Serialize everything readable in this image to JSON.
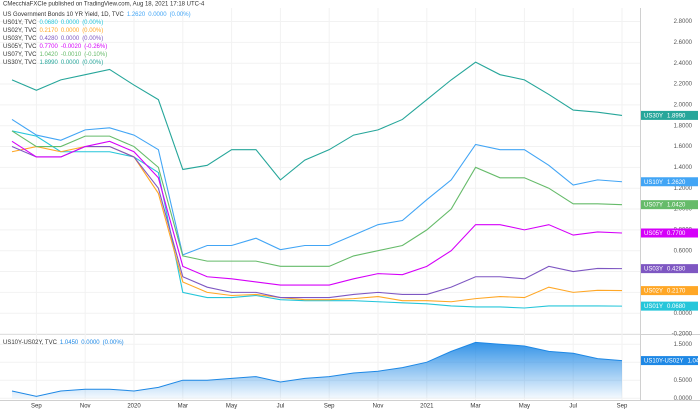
{
  "header": "CMecchiaFXCIe published on TradingView.com, Aug 18, 2021 17:18 UTC-4",
  "chart_data": [
    {
      "type": "line",
      "title": "US Government Bonds 10 YR Yield, 1D, TVC",
      "categories": [
        null,
        "Sep",
        null,
        "Nov",
        null,
        "2020",
        null,
        "Mar",
        null,
        "May",
        null,
        "Jul",
        null,
        "Sep",
        null,
        "Nov",
        null,
        "2021",
        null,
        "Mar",
        null,
        "May",
        null,
        "Jul",
        null,
        "Sep"
      ],
      "ylim": [
        -0.19,
        2.93
      ],
      "yticks": [
        {
          "value": -0.2,
          "label": "-0.2000"
        },
        {
          "value": 0,
          "label": "0.0000"
        },
        {
          "value": 0.2,
          "label": "0.2000"
        },
        {
          "value": 0.4,
          "label": "0.4000"
        },
        {
          "value": 0.6,
          "label": "0.6000"
        },
        {
          "value": 0.8,
          "label": "0.8000"
        },
        {
          "value": 1.0,
          "label": "1.0000"
        },
        {
          "value": 1.2,
          "label": "1.2000"
        },
        {
          "value": 1.4,
          "label": "1.4000"
        },
        {
          "value": 1.6,
          "label": "1.6000"
        },
        {
          "value": 1.8,
          "label": "1.8000"
        },
        {
          "value": 2.0,
          "label": "2.0000"
        },
        {
          "value": 2.2,
          "label": "2.2000"
        },
        {
          "value": 2.4,
          "label": "2.4000"
        },
        {
          "value": 2.6,
          "label": "2.6000"
        },
        {
          "value": 2.8,
          "label": "2.8000"
        }
      ],
      "series": [
        {
          "name": "US10Y",
          "legend": null,
          "color": "#42a5f5",
          "price": "1.2620",
          "change": "0.0000",
          "change_pct": "(0.00%)",
          "values": [
            1.86,
            1.71,
            1.66,
            1.76,
            1.78,
            1.71,
            1.57,
            0.56,
            0.65,
            0.65,
            0.72,
            0.61,
            0.65,
            0.65,
            0.75,
            0.85,
            0.89,
            1.09,
            1.28,
            1.62,
            1.57,
            1.57,
            1.42,
            1.23,
            1.28,
            1.262
          ]
        },
        {
          "name": "US01Y",
          "legend": "US01Y, TVC",
          "color": "#26c6da",
          "price": "0.0680",
          "change": "0.0000",
          "change_pct": "(0.00%)",
          "values": [
            1.75,
            1.7,
            1.55,
            1.55,
            1.55,
            1.5,
            1.35,
            0.2,
            0.15,
            0.15,
            0.17,
            0.13,
            0.12,
            0.12,
            0.12,
            0.11,
            0.1,
            0.09,
            0.07,
            0.06,
            0.06,
            0.05,
            0.07,
            0.07,
            0.07,
            0.068
          ]
        },
        {
          "name": "US02Y",
          "legend": "US02Y, TVC",
          "color": "#ffa726",
          "price": "0.2170",
          "change": "0.0000",
          "change_pct": "(0.00%)",
          "values": [
            1.55,
            1.6,
            1.55,
            1.6,
            1.6,
            1.5,
            1.15,
            0.3,
            0.2,
            0.17,
            0.18,
            0.15,
            0.13,
            0.13,
            0.14,
            0.16,
            0.12,
            0.12,
            0.11,
            0.14,
            0.16,
            0.15,
            0.25,
            0.2,
            0.22,
            0.217
          ]
        },
        {
          "name": "US03Y",
          "legend": "US03Y, TVC",
          "color": "#7e57c2",
          "price": "0.4280",
          "change": "0.0000",
          "change_pct": "(0.00%)",
          "values": [
            1.6,
            1.5,
            1.5,
            1.6,
            1.6,
            1.5,
            1.2,
            0.35,
            0.25,
            0.2,
            0.2,
            0.15,
            0.15,
            0.15,
            0.18,
            0.2,
            0.18,
            0.18,
            0.25,
            0.35,
            0.35,
            0.33,
            0.45,
            0.4,
            0.43,
            0.428
          ]
        },
        {
          "name": "US05Y",
          "legend": "US05Y, TVC",
          "color": "#d500f9",
          "price": "0.7700",
          "change": "-0.0020",
          "change_pct": "(-0.26%)",
          "values": [
            1.65,
            1.5,
            1.5,
            1.6,
            1.65,
            1.55,
            1.3,
            0.45,
            0.35,
            0.33,
            0.3,
            0.27,
            0.27,
            0.27,
            0.33,
            0.38,
            0.37,
            0.45,
            0.6,
            0.85,
            0.85,
            0.8,
            0.85,
            0.75,
            0.78,
            0.77
          ]
        },
        {
          "name": "US07Y",
          "legend": "US07Y, TVC",
          "color": "#66bb6a",
          "price": "1.0420",
          "change": "-0.0010",
          "change_pct": "(-0.10%)",
          "values": [
            1.75,
            1.6,
            1.6,
            1.7,
            1.7,
            1.6,
            1.4,
            0.55,
            0.5,
            0.5,
            0.5,
            0.45,
            0.45,
            0.45,
            0.55,
            0.6,
            0.65,
            0.8,
            1.0,
            1.4,
            1.3,
            1.3,
            1.2,
            1.05,
            1.05,
            1.042
          ]
        },
        {
          "name": "US30Y",
          "legend": "US30Y, TVC",
          "color": "#26a69a",
          "price": "1.8990",
          "change": "0.0000",
          "change_pct": "(0.00%)",
          "values": [
            2.24,
            2.14,
            2.24,
            2.29,
            2.34,
            2.19,
            2.05,
            1.38,
            1.42,
            1.57,
            1.57,
            1.28,
            1.47,
            1.57,
            1.71,
            1.76,
            1.86,
            2.05,
            2.24,
            2.41,
            2.29,
            2.24,
            2.1,
            1.95,
            1.93,
            1.899
          ]
        }
      ]
    },
    {
      "type": "area",
      "series": [
        {
          "name": "US10Y-US02Y",
          "legend": "US10Y-US02Y, TVC",
          "color": "#1e88e5",
          "price": "1.0450",
          "change": "0.0000",
          "change_pct": "(0.00%)",
          "values": [
            0.2,
            0.05,
            0.2,
            0.25,
            0.25,
            0.2,
            0.3,
            0.5,
            0.5,
            0.55,
            0.6,
            0.45,
            0.55,
            0.6,
            0.7,
            0.75,
            0.85,
            1.0,
            1.3,
            1.55,
            1.5,
            1.45,
            1.3,
            1.25,
            1.1,
            1.045
          ]
        }
      ],
      "ylim": [
        -0.05,
        1.7
      ],
      "yticks": [
        {
          "value": 0,
          "label": "0.0000"
        },
        {
          "value": 0.5,
          "label": "0.5000"
        },
        {
          "value": 1.0,
          "label": "1.0000"
        },
        {
          "value": 1.5,
          "label": "1.5000"
        }
      ]
    }
  ]
}
